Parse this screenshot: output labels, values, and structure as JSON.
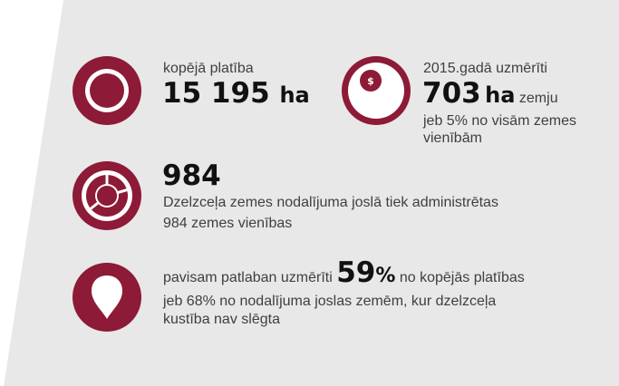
{
  "colors": {
    "accent": "#8d1a36",
    "panel": "#e8e8e8",
    "text": "#3f3f3f",
    "number": "#111111"
  },
  "stat_total_area": {
    "icon": "circle-target-icon",
    "label": "kopējā platība",
    "value": "15 195",
    "unit": "ha"
  },
  "stat_measured_2015": {
    "icon": "coin-icon",
    "coin_symbol": "$",
    "label": "2015.gadā uzmērīti",
    "value": "703",
    "unit": "ha",
    "suffix": "zemju",
    "line2": "jeb 5% no visām  zemes",
    "line3": "vienībām"
  },
  "stat_units": {
    "icon": "pie-chart-icon",
    "value": "984",
    "line1": "Dzelzceļa zemes nodalījuma joslā tiek administrētas",
    "line2": "984 zemes vienības"
  },
  "stat_measured_now": {
    "icon": "map-pin-icon",
    "prefix": "pavisam patlaban uzmērīti",
    "value": "59",
    "percent": "%",
    "suffix": "no kopējās platības",
    "line2": "jeb 68%  no nodalījuma joslas zemēm,  kur dzelzceļa",
    "line3": "kustība nav slēgta"
  }
}
